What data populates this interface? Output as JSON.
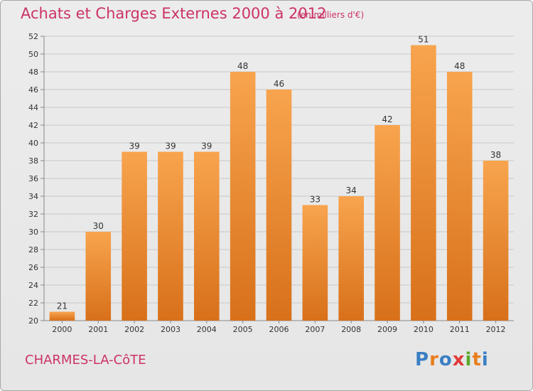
{
  "title": "Achats et Charges Externes 2000 à 2012",
  "subtitle": "(en milliers d'€)",
  "commune": "CHARMES-LA-CôTE",
  "logo": {
    "text": "Proxiti",
    "colors": [
      "#3a7fc4",
      "#e87e1e",
      "#3a7fc4",
      "#e03a3a",
      "#5aaa2a",
      "#e87e1e",
      "#3a7fc4"
    ]
  },
  "colors": {
    "bar_top": "#f8a44e",
    "bar_bottom": "#d8701a",
    "text_accent": "#cc3366",
    "grid": "#c8c8c8"
  },
  "chart_data": {
    "type": "bar",
    "title": "Achats et Charges Externes 2000 à 2012",
    "subtitle": "(en milliers d'€)",
    "xlabel": "",
    "ylabel": "",
    "categories": [
      "2000",
      "2001",
      "2002",
      "2003",
      "2004",
      "2005",
      "2006",
      "2007",
      "2008",
      "2009",
      "2010",
      "2011",
      "2012"
    ],
    "values": [
      21,
      30,
      39,
      39,
      39,
      48,
      46,
      33,
      34,
      42,
      51,
      48,
      38
    ],
    "ylim": [
      20,
      52
    ],
    "yticks": [
      20,
      22,
      24,
      26,
      28,
      30,
      32,
      34,
      36,
      38,
      40,
      42,
      44,
      46,
      48,
      50,
      52
    ],
    "grid": true,
    "data_labels": true
  }
}
